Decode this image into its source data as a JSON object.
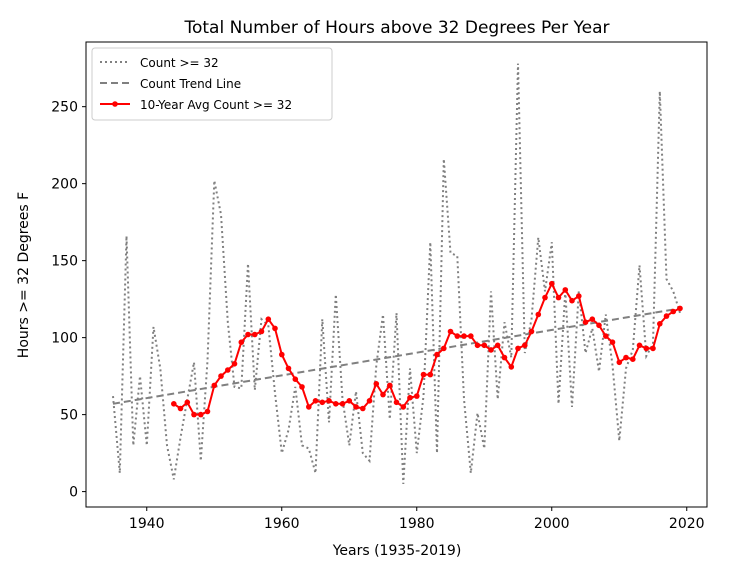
{
  "chart_data": {
    "type": "line",
    "title": "Total Number of Hours above 32 Degrees Per Year",
    "xlabel": "Years (1935-2019)",
    "ylabel": "Hours >= 32 Degrees F",
    "xlim": [
      1931,
      2023
    ],
    "ylim": [
      -10,
      292
    ],
    "xticks": [
      1940,
      1960,
      1980,
      2000,
      2020
    ],
    "yticks": [
      0,
      50,
      100,
      150,
      200,
      250
    ],
    "grid": false,
    "legend_position": "upper-left",
    "series": [
      {
        "name": "Count >= 32",
        "style": "dotted",
        "color": "#808080",
        "x": [
          1935,
          1936,
          1937,
          1938,
          1939,
          1940,
          1941,
          1942,
          1943,
          1944,
          1945,
          1946,
          1947,
          1948,
          1949,
          1950,
          1951,
          1952,
          1953,
          1954,
          1955,
          1956,
          1957,
          1958,
          1959,
          1960,
          1961,
          1962,
          1963,
          1964,
          1965,
          1966,
          1967,
          1968,
          1969,
          1970,
          1971,
          1972,
          1973,
          1974,
          1975,
          1976,
          1977,
          1978,
          1979,
          1980,
          1981,
          1982,
          1983,
          1984,
          1985,
          1986,
          1987,
          1988,
          1989,
          1990,
          1991,
          1992,
          1993,
          1994,
          1995,
          1996,
          1997,
          1998,
          1999,
          2000,
          2001,
          2002,
          2003,
          2004,
          2005,
          2006,
          2007,
          2008,
          2009,
          2010,
          2011,
          2012,
          2013,
          2014,
          2015,
          2016,
          2017,
          2018,
          2019
        ],
        "y": [
          62,
          12,
          166,
          30,
          75,
          30,
          107,
          80,
          30,
          8,
          35,
          60,
          84,
          20,
          85,
          202,
          180,
          110,
          68,
          67,
          148,
          66,
          112,
          108,
          64,
          25,
          40,
          68,
          30,
          28,
          12,
          112,
          45,
          128,
          60,
          30,
          65,
          25,
          20,
          82,
          115,
          47,
          116,
          5,
          80,
          25,
          62,
          162,
          25,
          216,
          155,
          153,
          60,
          12,
          51,
          28,
          130,
          60,
          110,
          87,
          278,
          90,
          112,
          165,
          130,
          162,
          57,
          130,
          55,
          130,
          90,
          106,
          78,
          115,
          82,
          33,
          80,
          92,
          147,
          88,
          96,
          260,
          138,
          130,
          116
        ]
      },
      {
        "name": "Count Trend Line",
        "style": "dashed",
        "color": "#808080",
        "x": [
          1935,
          2019
        ],
        "y": [
          57,
          119
        ]
      },
      {
        "name": "10-Year Avg Count >= 32",
        "style": "solid-markers",
        "color": "#ff0000",
        "x": [
          1944,
          1945,
          1946,
          1947,
          1948,
          1949,
          1950,
          1951,
          1952,
          1953,
          1954,
          1955,
          1956,
          1957,
          1958,
          1959,
          1960,
          1961,
          1962,
          1963,
          1964,
          1965,
          1966,
          1967,
          1968,
          1969,
          1970,
          1971,
          1972,
          1973,
          1974,
          1975,
          1976,
          1977,
          1978,
          1979,
          1980,
          1981,
          1982,
          1983,
          1984,
          1985,
          1986,
          1987,
          1988,
          1989,
          1990,
          1991,
          1992,
          1993,
          1994,
          1995,
          1996,
          1997,
          1998,
          1999,
          2000,
          2001,
          2002,
          2003,
          2004,
          2005,
          2006,
          2007,
          2008,
          2009,
          2010,
          2011,
          2012,
          2013,
          2014,
          2015,
          2016,
          2017,
          2018,
          2019
        ],
        "y": [
          57,
          54,
          58,
          50,
          50,
          52,
          69,
          75,
          79,
          83,
          97,
          102,
          102,
          104,
          112,
          106,
          89,
          80,
          73,
          68,
          55,
          59,
          58,
          59,
          57,
          57,
          59,
          55,
          54,
          59,
          70,
          63,
          69,
          58,
          55,
          61,
          62,
          76,
          76,
          89,
          93,
          104,
          101,
          101,
          101,
          95,
          95,
          92,
          95,
          87,
          81,
          93,
          95,
          104,
          115,
          126,
          135,
          126,
          131,
          124,
          127,
          110,
          112,
          108,
          101,
          97,
          84,
          87,
          86,
          95,
          93,
          93,
          109,
          114,
          117,
          119
        ]
      }
    ]
  }
}
